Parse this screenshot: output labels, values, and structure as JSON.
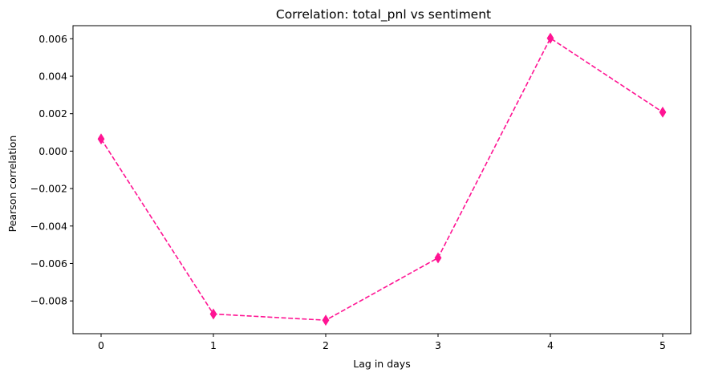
{
  "chart_data": {
    "type": "line",
    "title": "Correlation: total_pnl vs sentiment",
    "xlabel": "Lag in days",
    "ylabel": "Pearson correlation",
    "x": [
      0,
      1,
      2,
      3,
      4,
      5
    ],
    "series": [
      {
        "values": [
          0.00065,
          -0.0087,
          -0.00903,
          -0.0057,
          0.00603,
          0.00208
        ],
        "color": "#ff1493",
        "line_style": "dashed",
        "marker": "thin-diamond"
      }
    ],
    "xticks": [
      "0",
      "1",
      "2",
      "3",
      "4",
      "5"
    ],
    "yticks": [
      "0.006",
      "0.004",
      "0.002",
      "0.000",
      "−0.002",
      "−0.004",
      "−0.006",
      "−0.008"
    ],
    "xlim": [
      -0.25,
      5.25
    ],
    "ylim": [
      -0.00975,
      0.0067
    ],
    "grid": false,
    "legend": "none"
  }
}
